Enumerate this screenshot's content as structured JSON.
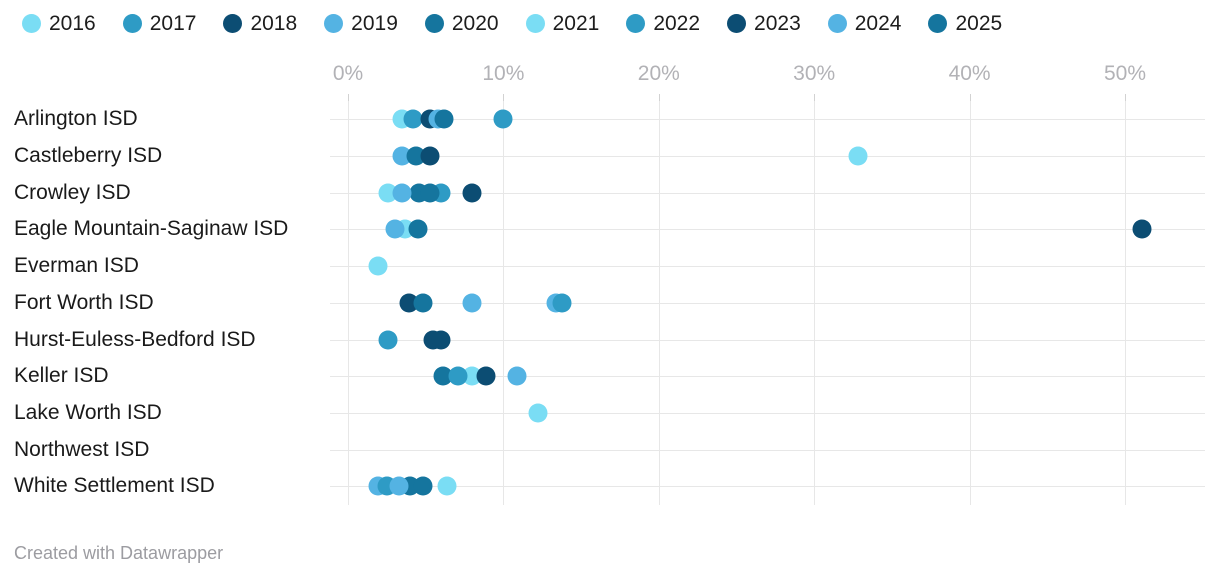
{
  "footer": {
    "text": "Created with Datawrapper"
  },
  "chart_data": {
    "type": "scatter",
    "subtype": "horizontal-dot-plot",
    "title": "",
    "xlabel": "",
    "ylabel": "",
    "xlim": [
      0,
      50
    ],
    "x_tick_step": 10,
    "x_tick_labels": [
      "0%",
      "10%",
      "20%",
      "30%",
      "40%",
      "50%"
    ],
    "grid": "vertical-and-row-lines",
    "legend_position": "top-left",
    "categories": [
      "Arlington ISD",
      "Castleberry ISD",
      "Crowley ISD",
      "Eagle Mountain-Saginaw ISD",
      "Everman ISD",
      "Fort Worth ISD",
      "Hurst-Euless-Bedford ISD",
      "Keller ISD",
      "Lake Worth ISD",
      "Northwest ISD",
      "White Settlement ISD"
    ],
    "value_unit": "%",
    "series": [
      {
        "name": "2016",
        "color": "#7addf4",
        "values": [
          3.5,
          null,
          null,
          3.7,
          null,
          null,
          null,
          8.0,
          null,
          null,
          6.4
        ]
      },
      {
        "name": "2017",
        "color": "#2e9bc5",
        "values": [
          4.2,
          null,
          null,
          null,
          null,
          null,
          null,
          null,
          null,
          null,
          null
        ]
      },
      {
        "name": "2018",
        "color": "#0c4d73",
        "values": [
          5.3,
          null,
          8.0,
          null,
          null,
          3.9,
          5.5,
          null,
          null,
          null,
          null
        ]
      },
      {
        "name": "2019",
        "color": "#54b3e3",
        "values": [
          5.8,
          3.5,
          null,
          3.0,
          null,
          13.4,
          null,
          10.9,
          null,
          null,
          1.9
        ]
      },
      {
        "name": "2020",
        "color": "#15759e",
        "values": [
          6.2,
          4.4,
          4.6,
          4.5,
          null,
          4.8,
          null,
          6.1,
          null,
          null,
          4.0
        ]
      },
      {
        "name": "2021",
        "color": "#7addf4",
        "values": [
          null,
          32.8,
          2.6,
          null,
          1.9,
          null,
          null,
          null,
          12.2,
          null,
          null
        ]
      },
      {
        "name": "2022",
        "color": "#2e9bc5",
        "values": [
          10.0,
          null,
          6.0,
          null,
          null,
          13.8,
          2.6,
          7.1,
          null,
          null,
          2.5
        ]
      },
      {
        "name": "2023",
        "color": "#0c4d73",
        "values": [
          null,
          5.3,
          null,
          51.1,
          null,
          null,
          6.0,
          8.9,
          null,
          null,
          null
        ]
      },
      {
        "name": "2024",
        "color": "#54b3e3",
        "values": [
          null,
          null,
          3.5,
          null,
          null,
          8.0,
          null,
          null,
          null,
          null,
          3.3
        ]
      },
      {
        "name": "2025",
        "color": "#15759e",
        "values": [
          null,
          null,
          5.3,
          null,
          null,
          null,
          null,
          null,
          null,
          null,
          4.8
        ]
      }
    ]
  }
}
